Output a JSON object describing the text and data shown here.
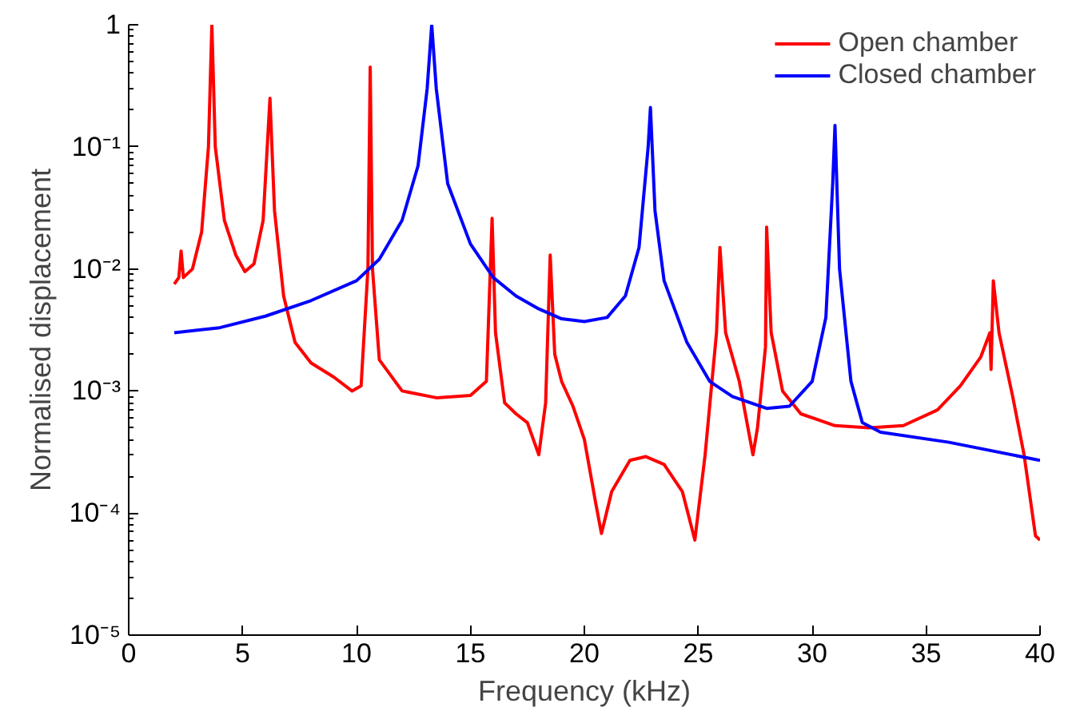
{
  "chart_data": {
    "type": "line",
    "xlabel": "Frequency (kHz)",
    "ylabel": "Normalised displacement",
    "log": "y",
    "grid": false,
    "legend": "top right",
    "line_style": "solid",
    "marker": "none",
    "xlim": [
      0,
      40
    ],
    "xticks": [
      0,
      5,
      10,
      15,
      20,
      25,
      30,
      35,
      40
    ],
    "ylim": [
      1e-05,
      1
    ],
    "yticks": [
      {
        "value": 1e-05,
        "label": "10⁻⁵"
      },
      {
        "value": 0.0001,
        "label": "10⁻⁴"
      },
      {
        "value": 0.001,
        "label": "10⁻³"
      },
      {
        "value": 0.01,
        "label": "10⁻²"
      },
      {
        "value": 0.1,
        "label": "10⁻¹"
      },
      1
    ],
    "series": [
      {
        "name": "Open chamber",
        "color": "#ff0000",
        "x": [
          2.0,
          2.2,
          2.3,
          2.4,
          2.8,
          3.2,
          3.5,
          3.65,
          3.8,
          4.2,
          4.7,
          5.1,
          5.5,
          5.9,
          6.2,
          6.4,
          6.8,
          7.3,
          8.0,
          9.0,
          9.8,
          10.2,
          10.5,
          10.6,
          10.7,
          11.0,
          12.0,
          13.5,
          15.0,
          15.7,
          15.95,
          16.1,
          16.5,
          17.0,
          17.5,
          18.0,
          18.3,
          18.5,
          18.7,
          19.0,
          19.5,
          20.0,
          20.5,
          20.75,
          21.2,
          22.0,
          22.7,
          23.5,
          24.3,
          24.85,
          25.3,
          25.8,
          25.95,
          26.2,
          26.8,
          27.4,
          27.6,
          27.95,
          28.0,
          28.2,
          28.7,
          29.5,
          31.0,
          32.5,
          34.0,
          35.5,
          36.5,
          37.4,
          37.8,
          37.85,
          37.95,
          38.2,
          38.8,
          39.3,
          39.8,
          40.0
        ],
        "values": [
          0.0075,
          0.0085,
          0.014,
          0.0085,
          0.01,
          0.02,
          0.1,
          1.0,
          0.1,
          0.025,
          0.013,
          0.0095,
          0.011,
          0.025,
          0.25,
          0.03,
          0.006,
          0.0025,
          0.0017,
          0.0013,
          0.001,
          0.0011,
          0.01,
          0.45,
          0.01,
          0.0018,
          0.001,
          0.00088,
          0.00092,
          0.0012,
          0.026,
          0.003,
          0.0008,
          0.00065,
          0.00055,
          0.0003,
          0.0008,
          0.013,
          0.002,
          0.0012,
          0.00075,
          0.0004,
          0.00012,
          6.8e-05,
          0.00015,
          0.00027,
          0.00029,
          0.00025,
          0.00015,
          6e-05,
          0.0003,
          0.003,
          0.015,
          0.003,
          0.0012,
          0.0003,
          0.0005,
          0.0023,
          0.022,
          0.003,
          0.001,
          0.00065,
          0.00052,
          0.0005,
          0.00052,
          0.0007,
          0.0011,
          0.0019,
          0.003,
          0.0015,
          0.008,
          0.003,
          0.0009,
          0.0003,
          6.5e-05,
          6e-05
        ]
      },
      {
        "name": "Closed chamber",
        "color": "#0000ff",
        "x": [
          2,
          4,
          6,
          8,
          10,
          11,
          12,
          12.7,
          13.1,
          13.3,
          13.5,
          14,
          15,
          16,
          17,
          18,
          19,
          20,
          21,
          21.8,
          22.4,
          22.8,
          22.9,
          23.1,
          23.5,
          24.5,
          25.5,
          26.5,
          28,
          29,
          30,
          30.6,
          30.9,
          31.0,
          31.2,
          31.7,
          32.2,
          33,
          36,
          40
        ],
        "values": [
          0.003,
          0.0033,
          0.0041,
          0.0055,
          0.008,
          0.012,
          0.025,
          0.07,
          0.3,
          1.0,
          0.3,
          0.05,
          0.016,
          0.0085,
          0.006,
          0.0047,
          0.0039,
          0.0037,
          0.004,
          0.006,
          0.015,
          0.1,
          0.21,
          0.03,
          0.008,
          0.0025,
          0.0012,
          0.0009,
          0.00072,
          0.00075,
          0.0012,
          0.004,
          0.05,
          0.15,
          0.01,
          0.0012,
          0.00055,
          0.00046,
          0.00038,
          0.00027
        ]
      }
    ]
  }
}
